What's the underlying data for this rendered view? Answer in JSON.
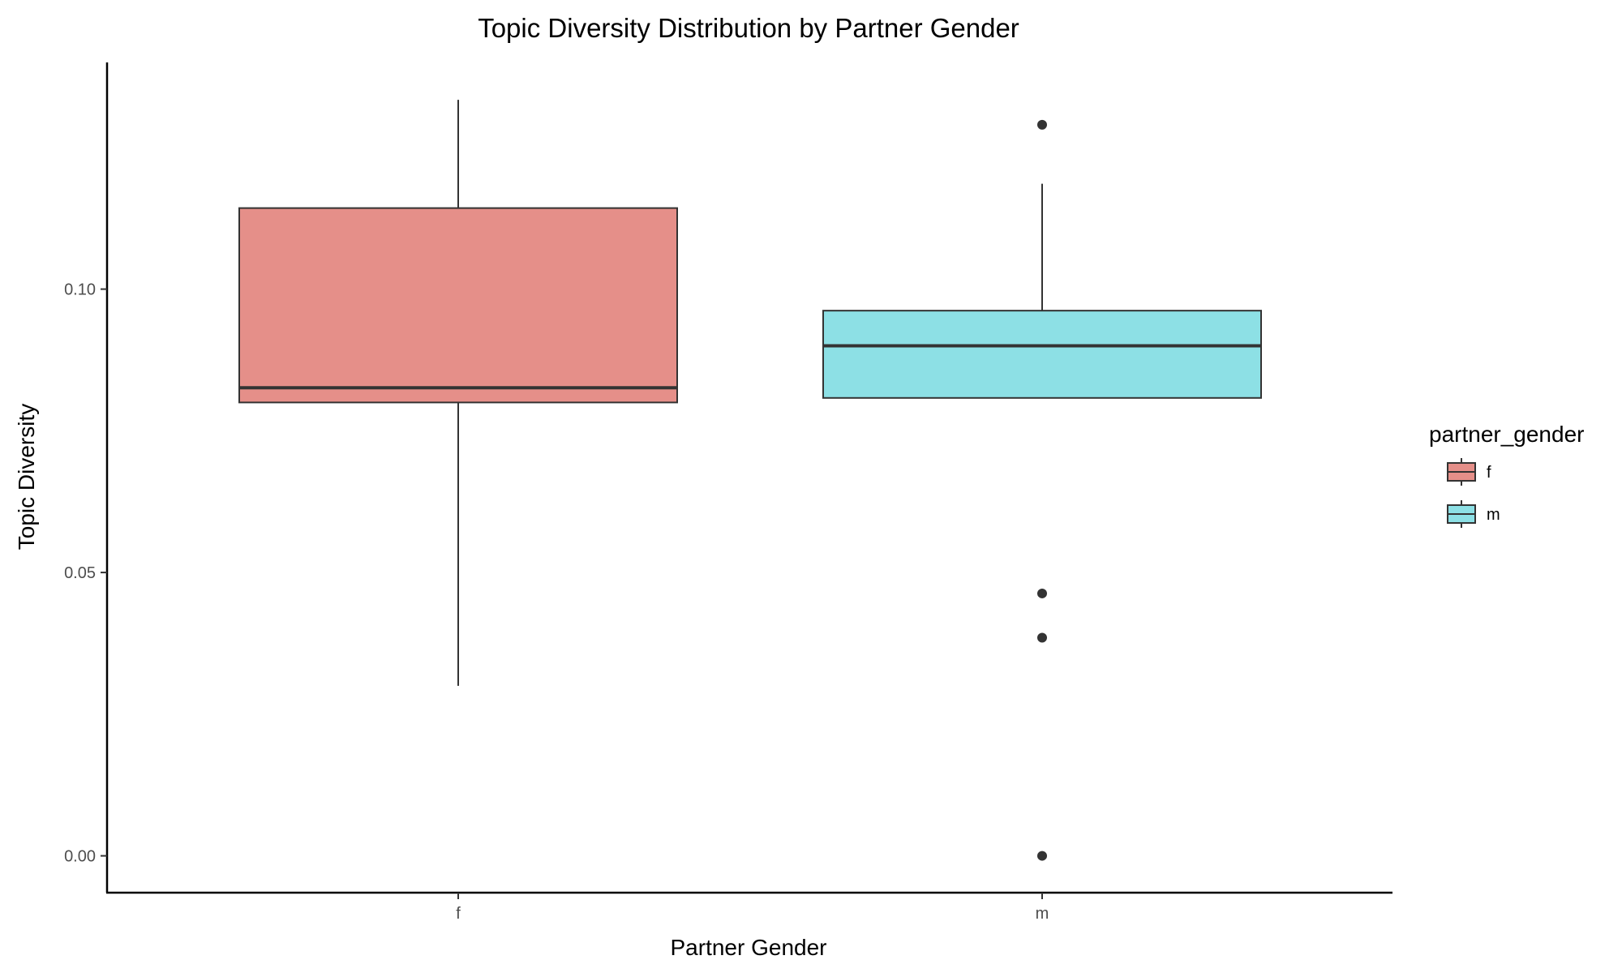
{
  "chart_data": {
    "type": "box",
    "title": "Topic Diversity Distribution by Partner Gender",
    "xlabel": "Partner Gender",
    "ylabel": "Topic Diversity",
    "ylim": [
      -0.0065,
      0.14
    ],
    "y_ticks": [
      0.0,
      0.05,
      0.1
    ],
    "y_tick_labels": [
      "0.00",
      "0.05",
      "0.10"
    ],
    "categories": [
      "f",
      "m"
    ],
    "grid": false,
    "legend": {
      "title": "partner_gender",
      "position": "right",
      "entries": [
        "f",
        "m"
      ]
    },
    "series": [
      {
        "category": "f",
        "color": "#e58f89",
        "whisker_low": 0.03,
        "q1": 0.08,
        "median": 0.0826,
        "q3": 0.1143,
        "whisker_high": 0.1334,
        "outliers": []
      },
      {
        "category": "m",
        "color": "#8de0e5",
        "whisker_low": 0.0808,
        "q1": 0.0808,
        "median": 0.09,
        "q3": 0.0962,
        "whisker_high": 0.1186,
        "outliers": [
          0.129,
          0.0463,
          0.0385,
          0.0
        ]
      }
    ]
  }
}
